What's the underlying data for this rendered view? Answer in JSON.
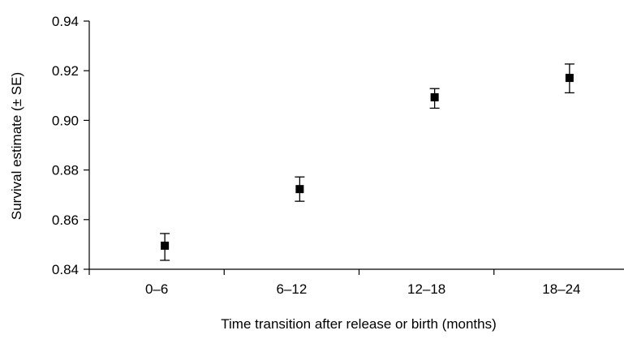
{
  "chart_data": {
    "type": "scatter",
    "title": "",
    "xlabel": "Time transition after release or birth (months)",
    "ylabel": "Survival estimate (± SE)",
    "categories": [
      "0–6",
      "6–12",
      "12–18",
      "18–24"
    ],
    "series": [
      {
        "values": [
          0.8495,
          0.8723,
          0.9093,
          0.9171
        ],
        "error_low": [
          0.8436,
          0.8674,
          0.9049,
          0.9111
        ],
        "error_high": [
          0.8544,
          0.8772,
          0.9128,
          0.9227
        ]
      }
    ],
    "ylim": [
      0.84,
      0.94
    ],
    "yticks": [
      "0.84",
      "0.86",
      "0.88",
      "0.90",
      "0.92",
      "0.94"
    ],
    "grid": false,
    "marker": "square",
    "colors": {
      "marker": "#000000",
      "axis": "#000000"
    }
  }
}
